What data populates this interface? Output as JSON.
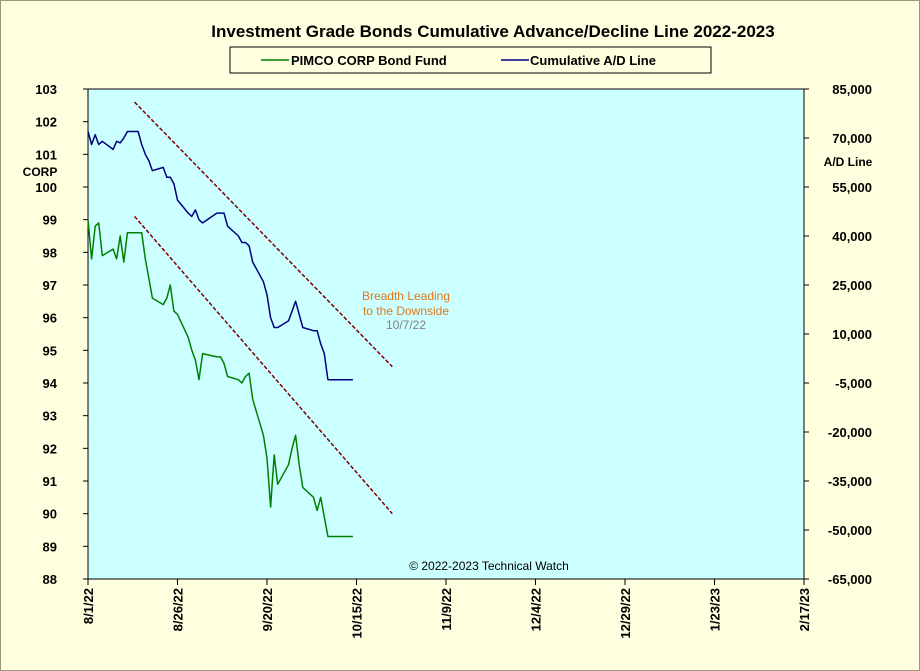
{
  "chart_data": {
    "type": "line",
    "title": "Investment Grade Bonds Cumulative Advance/Decline Line 2022-2023",
    "ylabel_left": "CORP",
    "ylabel_right": "A/D Line",
    "xlim": [
      "8/1/22",
      "2/17/23"
    ],
    "ylim_left": [
      88,
      103
    ],
    "ylim_right": [
      -65000,
      85000
    ],
    "x_ticks": [
      "8/1/22",
      "8/26/22",
      "9/20/22",
      "10/15/22",
      "11/9/22",
      "12/4/22",
      "12/29/22",
      "1/23/23",
      "2/17/23"
    ],
    "y_ticks_left": [
      "88",
      "89",
      "90",
      "91",
      "92",
      "93",
      "94",
      "95",
      "96",
      "97",
      "98",
      "99",
      "100",
      "101",
      "102",
      "103"
    ],
    "y_ticks_right": [
      "-65,000",
      "-50,000",
      "-35,000",
      "-20,000",
      "-5,000",
      "10,000",
      "25,000",
      "40,000",
      "55,000",
      "70,000",
      "85,000"
    ],
    "grid": false,
    "legend_position": "top-center",
    "series": [
      {
        "name": "PIMCO CORP Bond Fund",
        "axis": "left",
        "color": "#008000",
        "x": [
          "8/1/22",
          "8/2/22",
          "8/3/22",
          "8/4/22",
          "8/5/22",
          "8/8/22",
          "8/9/22",
          "8/10/22",
          "8/11/22",
          "8/12/22",
          "8/15/22",
          "8/16/22",
          "8/17/22",
          "8/18/22",
          "8/19/22",
          "8/22/22",
          "8/23/22",
          "8/24/22",
          "8/25/22",
          "8/26/22",
          "8/29/22",
          "8/30/22",
          "8/31/22",
          "9/1/22",
          "9/2/22",
          "9/6/22",
          "9/7/22",
          "9/8/22",
          "9/9/22",
          "9/12/22",
          "9/13/22",
          "9/14/22",
          "9/15/22",
          "9/16/22",
          "9/19/22",
          "9/20/22",
          "9/21/22",
          "9/22/22",
          "9/23/22",
          "9/26/22",
          "9/27/22",
          "9/28/22",
          "9/29/22",
          "9/30/22",
          "10/3/22",
          "10/4/22",
          "10/5/22",
          "10/6/22",
          "10/7/22",
          "10/10/22",
          "10/11/22",
          "10/12/22",
          "10/13/22",
          "10/14/22"
        ],
        "values": [
          99.0,
          97.8,
          98.8,
          98.9,
          97.9,
          98.1,
          97.8,
          98.5,
          97.7,
          98.6,
          98.6,
          98.6,
          97.8,
          97.2,
          96.6,
          96.4,
          96.6,
          97.0,
          96.2,
          96.1,
          95.4,
          95.0,
          94.7,
          94.1,
          94.9,
          94.8,
          94.8,
          94.6,
          94.2,
          94.1,
          94.0,
          94.2,
          94.3,
          93.5,
          92.4,
          91.7,
          90.2,
          91.8,
          90.9,
          91.5,
          92.0,
          92.4,
          91.5,
          90.8,
          90.5,
          90.1,
          90.5,
          89.9,
          89.3,
          89.3,
          89.3,
          89.3,
          89.3,
          89.3
        ]
      },
      {
        "name": "Cumulative A/D Line",
        "axis": "right",
        "color": "#000080",
        "x": [
          "8/1/22",
          "8/2/22",
          "8/3/22",
          "8/4/22",
          "8/5/22",
          "8/8/22",
          "8/9/22",
          "8/10/22",
          "8/11/22",
          "8/12/22",
          "8/15/22",
          "8/16/22",
          "8/17/22",
          "8/18/22",
          "8/19/22",
          "8/22/22",
          "8/23/22",
          "8/24/22",
          "8/25/22",
          "8/26/22",
          "8/29/22",
          "8/30/22",
          "8/31/22",
          "9/1/22",
          "9/2/22",
          "9/6/22",
          "9/7/22",
          "9/8/22",
          "9/9/22",
          "9/12/22",
          "9/13/22",
          "9/14/22",
          "9/15/22",
          "9/16/22",
          "9/19/22",
          "9/20/22",
          "9/21/22",
          "9/22/22",
          "9/23/22",
          "9/26/22",
          "9/27/22",
          "9/28/22",
          "9/29/22",
          "9/30/22",
          "10/3/22",
          "10/4/22",
          "10/5/22",
          "10/6/22",
          "10/7/22",
          "10/10/22",
          "10/11/22",
          "10/12/22",
          "10/13/22",
          "10/14/22"
        ],
        "values": [
          72000,
          68000,
          71000,
          68000,
          69000,
          66500,
          69000,
          68500,
          70000,
          72000,
          72000,
          68000,
          65000,
          63000,
          60000,
          61000,
          58000,
          58000,
          56000,
          51000,
          47000,
          46000,
          48000,
          45000,
          44000,
          47000,
          47000,
          47000,
          43000,
          40000,
          38000,
          38000,
          37000,
          32000,
          26000,
          22000,
          15000,
          12000,
          12000,
          14000,
          17000,
          20000,
          16000,
          12000,
          11000,
          11000,
          7000,
          4000,
          -4000,
          -4000,
          -4000,
          -4000,
          -4000,
          -4000
        ]
      }
    ],
    "trendlines": [
      {
        "axis": "right",
        "from": {
          "x": "8/14/22",
          "y": 81000
        },
        "to": {
          "x": "10/25/22",
          "y": 0
        }
      },
      {
        "axis": "left",
        "from": {
          "x": "8/14/22",
          "y": 99.1
        },
        "to": {
          "x": "10/25/22",
          "y": 90.0
        }
      }
    ],
    "annotations": [
      {
        "text": "Breadth Leading",
        "color": "#e07818"
      },
      {
        "text": "to the Downside",
        "color": "#e07818"
      },
      {
        "text": "10/7/22",
        "color": "#808080"
      },
      {
        "text": "© 2022-2023  Technical  Watch",
        "color": "#000000"
      }
    ]
  },
  "colors": {
    "background": "#ffffe0",
    "plot_area": "#ccffff",
    "trendline": "#800000"
  }
}
